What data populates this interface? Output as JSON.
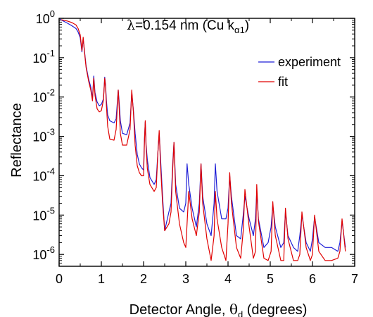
{
  "chart_data": {
    "type": "line",
    "xlabel_main": "Detector Angle, ",
    "xlabel_symbol": "θ",
    "xlabel_sub": "d",
    "xlabel_units": " (degrees)",
    "ylabel": "Reflectance",
    "annotation_lambda": "λ",
    "annotation_value": "=0.154 nm (Cu k",
    "annotation_sub": "α1",
    "annotation_close": ")",
    "x_scale": "linear",
    "y_scale": "log",
    "xlim": [
      0,
      7
    ],
    "ylim": [
      5e-07,
      1
    ],
    "x_ticks": [
      0,
      1,
      2,
      3,
      4,
      5,
      6,
      7
    ],
    "y_ticks": [
      {
        "base": "10",
        "exp": "0",
        "value": 1
      },
      {
        "base": "10",
        "exp": "-1",
        "value": 0.1
      },
      {
        "base": "10",
        "exp": "-2",
        "value": 0.01
      },
      {
        "base": "10",
        "exp": "-3",
        "value": 0.001
      },
      {
        "base": "10",
        "exp": "-4",
        "value": 0.0001
      },
      {
        "base": "10",
        "exp": "-5",
        "value": 1e-05
      },
      {
        "base": "10",
        "exp": "-6",
        "value": 1e-06
      }
    ],
    "grid": false,
    "legend_position": "top-right",
    "series": [
      {
        "name": "experiment",
        "color": "#1f1fd6",
        "x": [
          0.02,
          0.1,
          0.2,
          0.3,
          0.4,
          0.45,
          0.5,
          0.54,
          0.57,
          0.6,
          0.64,
          0.7,
          0.75,
          0.79,
          0.82,
          0.85,
          0.9,
          0.95,
          1.0,
          1.05,
          1.08,
          1.1,
          1.12,
          1.15,
          1.2,
          1.3,
          1.35,
          1.4,
          1.42,
          1.45,
          1.5,
          1.6,
          1.68,
          1.72,
          1.76,
          1.8,
          1.85,
          1.9,
          1.95,
          2.0,
          2.02,
          2.04,
          2.06,
          2.09,
          2.15,
          2.25,
          2.3,
          2.34,
          2.37,
          2.4,
          2.45,
          2.5,
          2.6,
          2.65,
          2.69,
          2.72,
          2.76,
          2.85,
          2.95,
          3.0,
          3.03,
          3.07,
          3.15,
          3.25,
          3.32,
          3.36,
          3.4,
          3.5,
          3.6,
          3.67,
          3.7,
          3.74,
          3.85,
          3.95,
          4.0,
          4.04,
          4.08,
          4.2,
          4.3,
          4.36,
          4.4,
          4.5,
          4.6,
          4.65,
          4.68,
          4.72,
          4.85,
          4.95,
          5.02,
          5.06,
          5.12,
          5.25,
          5.32,
          5.36,
          5.42,
          5.55,
          5.65,
          5.7,
          5.75,
          5.85,
          5.95,
          6.0,
          6.05,
          6.15,
          6.3,
          6.45,
          6.6,
          6.65,
          6.7,
          6.78
        ],
        "y": [
          0.95,
          0.85,
          0.75,
          0.65,
          0.55,
          0.45,
          0.32,
          0.14,
          0.3,
          0.15,
          0.06,
          0.028,
          0.018,
          0.009,
          0.034,
          0.013,
          0.0075,
          0.006,
          0.0065,
          0.009,
          0.032,
          0.02,
          0.008,
          0.0035,
          0.0025,
          0.0022,
          0.0028,
          0.015,
          0.008,
          0.0025,
          0.0012,
          0.0011,
          0.0022,
          0.013,
          0.0045,
          0.0012,
          0.00035,
          0.0002,
          0.00016,
          0.00014,
          0.0008,
          0.0023,
          0.0006,
          0.00025,
          9e-05,
          6e-05,
          8e-05,
          0.0004,
          0.0012,
          0.0003,
          3e-05,
          4e-06,
          1.2e-05,
          2e-05,
          0.0002,
          0.0007,
          6e-05,
          1.5e-05,
          1.2e-05,
          2e-05,
          0.0002,
          6e-05,
          1.5e-05,
          5e-06,
          2e-05,
          0.0002,
          3e-05,
          6e-06,
          3e-06,
          2e-05,
          0.0002,
          4e-05,
          8e-06,
          8e-06,
          1.5e-05,
          0.0001,
          3e-05,
          3e-06,
          2.5e-06,
          1e-05,
          3e-05,
          8e-06,
          3e-06,
          8e-06,
          4e-05,
          8e-06,
          1.5e-06,
          2e-06,
          5e-06,
          1.8e-05,
          5e-06,
          1.5e-06,
          2e-06,
          1.2e-05,
          3e-06,
          1.5e-06,
          1.2e-06,
          3e-06,
          1e-05,
          2e-06,
          1.2e-06,
          2.5e-06,
          9e-06,
          2e-06,
          1.5e-06,
          1.5e-06,
          1.2e-06,
          2e-06,
          7e-06,
          1.5e-06
        ]
      },
      {
        "name": "fit",
        "color": "#e00000",
        "x": [
          0.05,
          0.1,
          0.2,
          0.3,
          0.4,
          0.45,
          0.5,
          0.54,
          0.57,
          0.6,
          0.64,
          0.7,
          0.75,
          0.79,
          0.82,
          0.85,
          0.9,
          0.95,
          1.0,
          1.05,
          1.08,
          1.1,
          1.12,
          1.15,
          1.2,
          1.3,
          1.35,
          1.4,
          1.42,
          1.45,
          1.5,
          1.6,
          1.68,
          1.72,
          1.76,
          1.8,
          1.85,
          1.9,
          1.95,
          2.0,
          2.02,
          2.04,
          2.06,
          2.09,
          2.15,
          2.25,
          2.3,
          2.34,
          2.37,
          2.4,
          2.45,
          2.5,
          2.6,
          2.65,
          2.69,
          2.72,
          2.76,
          2.85,
          2.95,
          3.0,
          3.03,
          3.07,
          3.15,
          3.25,
          3.32,
          3.36,
          3.4,
          3.5,
          3.6,
          3.67,
          3.7,
          3.74,
          3.85,
          3.95,
          4.0,
          4.04,
          4.08,
          4.2,
          4.3,
          4.36,
          4.4,
          4.5,
          4.6,
          4.65,
          4.68,
          4.72,
          4.85,
          4.95,
          5.02,
          5.06,
          5.12,
          5.25,
          5.32,
          5.36,
          5.42,
          5.55,
          5.65,
          5.7,
          5.75,
          5.85,
          5.95,
          6.0,
          6.05,
          6.15,
          6.3,
          6.45,
          6.6,
          6.65,
          6.7,
          6.78
        ],
        "y": [
          0.92,
          0.9,
          0.85,
          0.78,
          0.68,
          0.55,
          0.38,
          0.15,
          0.33,
          0.14,
          0.055,
          0.025,
          0.015,
          0.008,
          0.03,
          0.011,
          0.005,
          0.0042,
          0.0045,
          0.0085,
          0.03,
          0.018,
          0.006,
          0.0018,
          0.00085,
          0.0008,
          0.0015,
          0.015,
          0.006,
          0.0012,
          0.0006,
          0.0006,
          0.0015,
          0.015,
          0.004,
          0.0006,
          0.00018,
          0.00012,
          0.0001,
          0.0001,
          0.0007,
          0.0025,
          0.0005,
          0.00015,
          6e-05,
          4e-05,
          5e-05,
          0.0004,
          0.0014,
          0.0002,
          2e-05,
          4e-06,
          6e-06,
          1.2e-05,
          0.00015,
          0.0007,
          4e-05,
          6e-06,
          2e-06,
          1.5e-06,
          6e-06,
          4e-05,
          8e-06,
          3e-06,
          1.2e-05,
          0.0002,
          2e-05,
          2.5e-06,
          7e-07,
          3e-06,
          4e-05,
          8e-06,
          1.5e-06,
          7e-07,
          6e-06,
          0.00012,
          2e-05,
          1.5e-06,
          8e-07,
          4e-06,
          4.5e-05,
          5e-06,
          8e-07,
          1.2e-06,
          6e-05,
          7e-06,
          8e-07,
          7e-07,
          1.2e-06,
          2.2e-05,
          3e-06,
          7e-07,
          7e-07,
          1.5e-05,
          2.5e-06,
          7e-07,
          7e-07,
          1e-06,
          1.2e-05,
          1.5e-06,
          7e-07,
          1e-06,
          1e-05,
          1.2e-06,
          7e-07,
          7e-07,
          8e-07,
          1.2e-06,
          8e-06,
          1.2e-06
        ]
      }
    ]
  }
}
